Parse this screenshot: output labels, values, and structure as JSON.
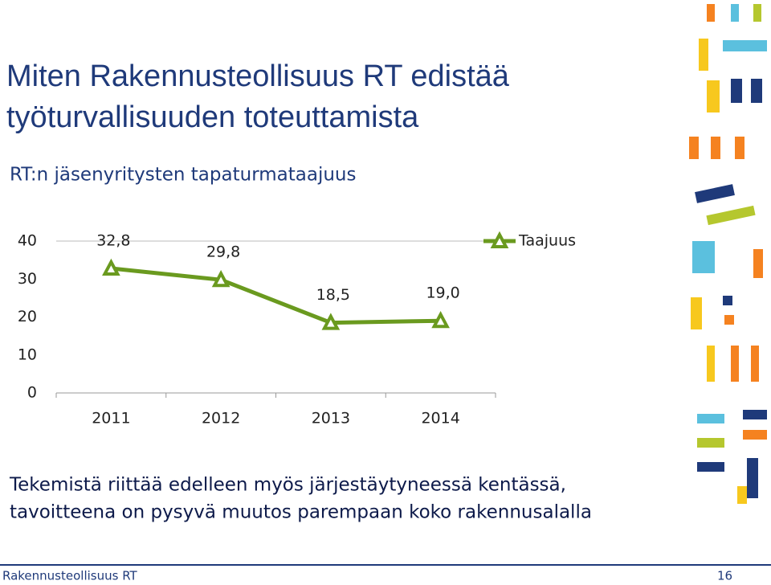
{
  "slide": {
    "title": [
      "Miten Rakennusteollisuus RT edistää",
      "työturvallisuuden toteuttamista"
    ],
    "body": [
      "Tekemistä riittää edelleen myös järjestäytyneessä kentässä,",
      "tavoitteena on pysyvä muutos parempaan koko rakennusalalla"
    ],
    "footer": "Rakennusteollisuus RT",
    "page": 16
  },
  "chart_data": {
    "type": "line",
    "title": "RT:n jäsenyritysten tapaturmataajuus",
    "categories": [
      "2011",
      "2012",
      "2013",
      "2014"
    ],
    "series": [
      {
        "name": "Taajuus",
        "color": "#6a9a1f",
        "values": [
          32.8,
          29.8,
          18.5,
          19.0
        ],
        "value_labels": [
          "32,8",
          "29,8",
          "18,5",
          "19,0"
        ]
      }
    ],
    "ylim": [
      0,
      40
    ],
    "yticks": [
      0,
      10,
      20,
      30,
      40
    ],
    "grid": false,
    "legend": "top-right"
  }
}
